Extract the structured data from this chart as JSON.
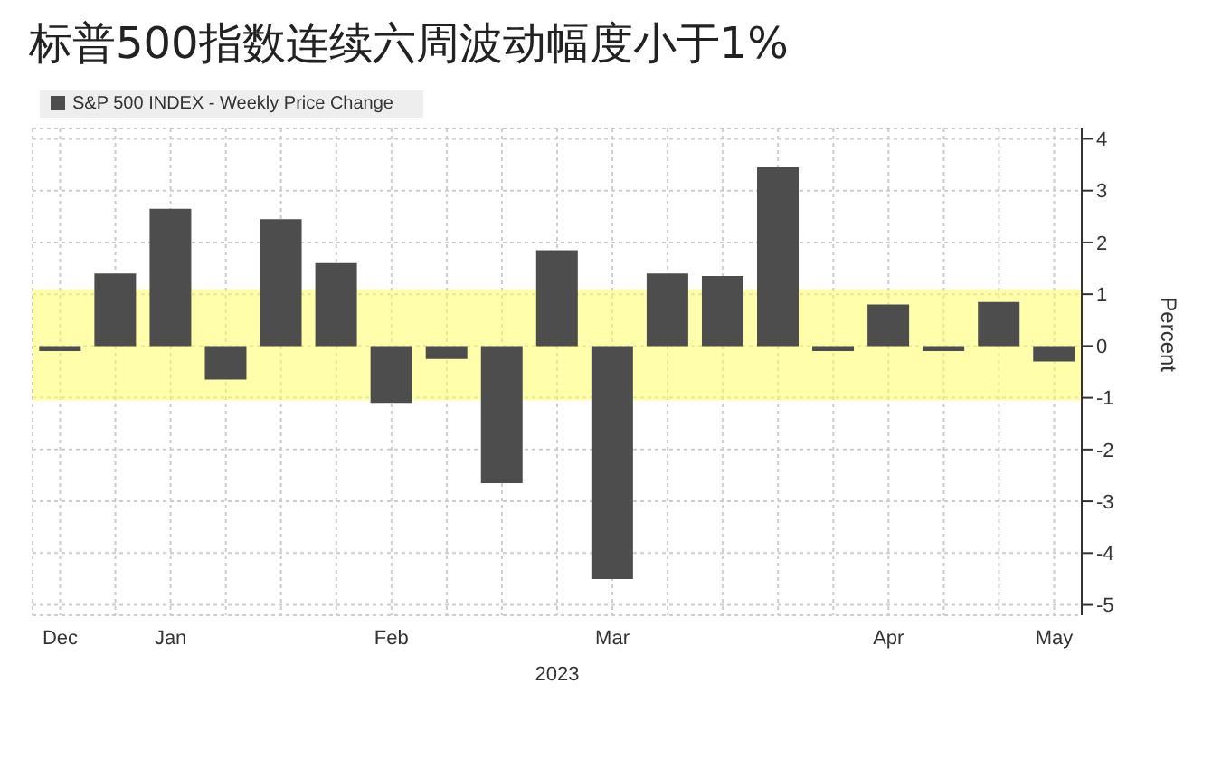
{
  "chart_data": {
    "type": "bar",
    "title": "标普500指数连续六周波动幅度小于1%",
    "xlabel": "2023",
    "ylabel": "Percent",
    "categories": [
      "Dec",
      null,
      "Jan",
      null,
      null,
      null,
      "Feb",
      null,
      null,
      null,
      "Mar",
      null,
      null,
      null,
      null,
      "Apr",
      null,
      null,
      "May"
    ],
    "series": [
      {
        "name": "S&P 500 INDEX - Weekly Price Change",
        "color": "#4d4d4d",
        "values": [
          -0.1,
          1.4,
          2.65,
          -0.65,
          2.45,
          1.6,
          -1.1,
          -0.25,
          -2.65,
          1.85,
          -4.5,
          1.4,
          1.35,
          3.45,
          -0.1,
          0.8,
          -0.1,
          0.85,
          -0.3
        ]
      }
    ],
    "ylim": [
      -5.2,
      4.2
    ],
    "yticks": [
      -5,
      -4,
      -3,
      -2,
      -1,
      0,
      1,
      2,
      3,
      4
    ],
    "bands": [
      {
        "axis": "y",
        "from": -1.05,
        "to": 1.1,
        "color": "#ffff66"
      }
    ],
    "grid": true,
    "legend": "top left"
  }
}
